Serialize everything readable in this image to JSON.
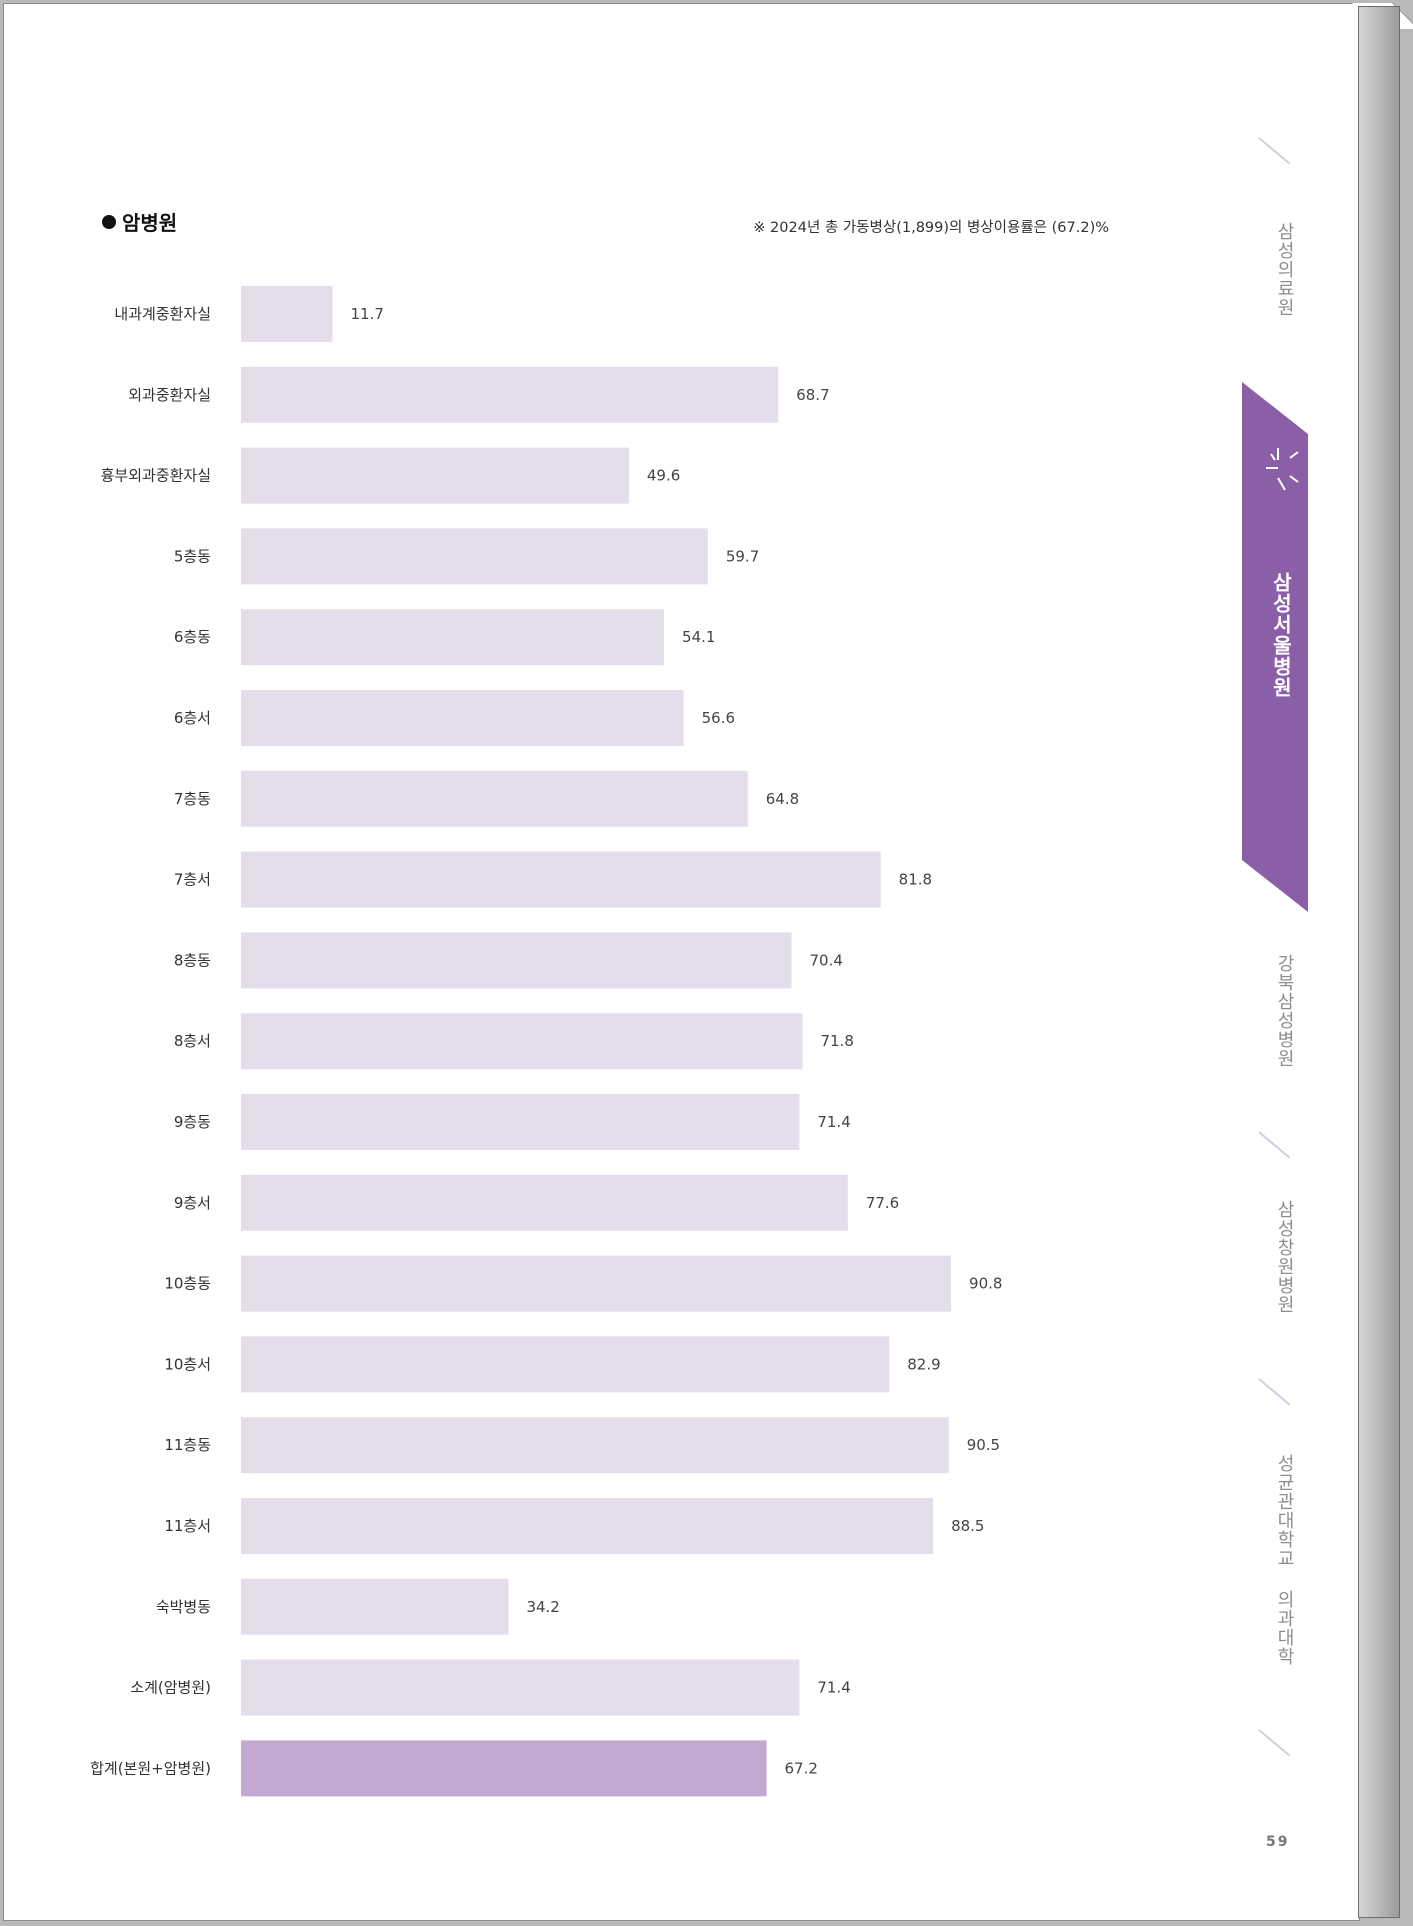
{
  "section": {
    "title": "암병원",
    "note": "※ 2024년 총 가동병상(1,899)의 병상이용률은 (67.2)%"
  },
  "side_tabs": [
    {
      "label": "삼성의료원",
      "active": false
    },
    {
      "label": "삼성서울병원",
      "active": true
    },
    {
      "label": "강북삼성병원",
      "active": false
    },
    {
      "label": "삼성창원병원",
      "active": false
    },
    {
      "label": "성균관대학교 의과대학",
      "active": false
    }
  ],
  "page_number": "59",
  "colors": {
    "bar": "#e3ddec",
    "bar_total": "#c1a9d1",
    "accent": "#8b5fa8"
  },
  "chart_data": {
    "type": "bar",
    "orientation": "horizontal",
    "title": "",
    "xlabel": "",
    "ylabel": "",
    "xlim": [
      0,
      100
    ],
    "grid": false,
    "categories": [
      "내과계중환자실",
      "외과중환자실",
      "흉부외과중환자실",
      "5층동",
      "6층동",
      "6층서",
      "7층동",
      "7층서",
      "8층동",
      "8층서",
      "9층동",
      "9층서",
      "10층동",
      "10층서",
      "11층동",
      "11층서",
      "숙박병동",
      "소계(암병원)",
      "합계(본원+암병원)"
    ],
    "values": [
      11.7,
      68.7,
      49.6,
      59.7,
      54.1,
      56.6,
      64.8,
      81.8,
      70.4,
      71.8,
      71.4,
      77.6,
      90.8,
      82.9,
      90.5,
      88.5,
      34.2,
      71.4,
      67.2
    ],
    "value_labels": [
      "11.7",
      "68.7",
      "49.6",
      "59.7",
      "54.1",
      "56.6",
      "64.8",
      "81.8",
      "70.4",
      "71.8",
      "71.4",
      "77.6",
      "90.8",
      "82.9",
      "90.5",
      "88.5",
      "34.2",
      "71.4",
      "67.2"
    ],
    "highlight_category": "합계(본원+암병원)"
  }
}
